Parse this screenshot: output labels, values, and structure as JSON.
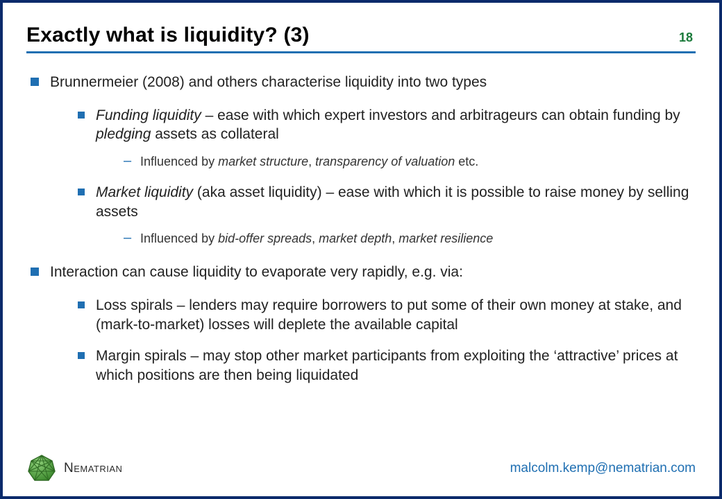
{
  "colors": {
    "border": "#0a2a6b",
    "rule": "#1f6fb2",
    "bullet": "#1f6fb2",
    "pagenum": "#1a7a3a",
    "text": "#000000",
    "email": "#1f6fb2",
    "logo_fill": "#4a9a3c",
    "logo_stroke": "#2f6b24"
  },
  "header": {
    "title": "Exactly what is liquidity? (3)",
    "page_number": "18"
  },
  "bullets": [
    {
      "html": "Brunnermeier (2008) and others characterise liquidity into two types",
      "children": [
        {
          "html": "<span class=\"italic\">Funding liquidity</span> – ease with which expert investors and arbitrageurs can obtain funding by <span class=\"italic\">pledging</span> assets as collateral",
          "children": [
            {
              "html": "Influenced by <span class=\"italic\">market structure</span>, <span class=\"italic\">transparency of valuation</span> etc."
            }
          ]
        },
        {
          "html": "<span class=\"italic\">Market liquidity</span> (aka asset liquidity) – ease with which it is possible to raise money by selling  assets",
          "children": [
            {
              "html": "Influenced by <span class=\"italic\">bid-offer spreads</span>, <span class=\"italic\">market depth</span>, <span class=\"italic\">market resilience</span>"
            }
          ]
        }
      ]
    },
    {
      "html": "Interaction can cause liquidity to evaporate very rapidly, e.g. via:",
      "children": [
        {
          "html": "Loss spirals – lenders may require borrowers to put some of their own money at stake, and (mark-to-market) losses will deplete the available capital"
        },
        {
          "html": "Margin spirals – may stop other market participants from exploiting the ‘attractive’ prices at which positions are then being liquidated"
        }
      ]
    }
  ],
  "footer": {
    "brand": "Nematrian",
    "email": "malcolm.kemp@nematrian.com"
  }
}
